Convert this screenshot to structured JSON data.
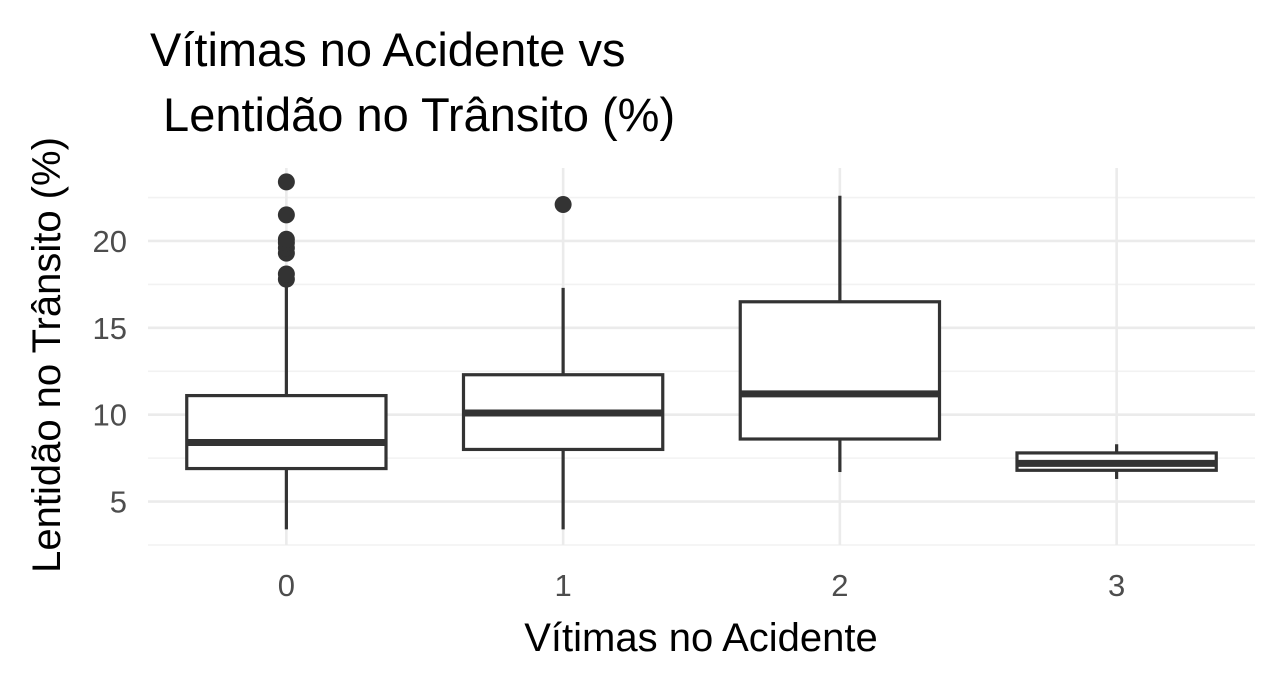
{
  "chart_data": {
    "type": "boxplot",
    "title_lines": [
      "Vítimas no Acidente vs",
      " Lentidão no Trânsito (%)"
    ],
    "xlabel": "Vítimas no Acidente",
    "ylabel": "Lentidão no Trânsito (%)",
    "categories": [
      "0",
      "1",
      "2",
      "3"
    ],
    "y_ticks": [
      5,
      10,
      15,
      20
    ],
    "y_tick_labels": [
      "5",
      "10",
      "15",
      "20"
    ],
    "ylim": [
      2.5,
      24.2
    ],
    "grid": true,
    "theme": "minimal",
    "box_color": "#333333",
    "boxes": [
      {
        "category": "0",
        "lower_whisker": 3.4,
        "q1": 6.9,
        "median": 8.4,
        "q3": 11.1,
        "upper_whisker": 17.6,
        "outliers": [
          17.8,
          18.1,
          19.3,
          19.6,
          19.9,
          20.1,
          21.5,
          23.4
        ]
      },
      {
        "category": "1",
        "lower_whisker": 3.4,
        "q1": 8.0,
        "median": 10.1,
        "q3": 12.3,
        "upper_whisker": 17.3,
        "outliers": [
          22.1
        ]
      },
      {
        "category": "2",
        "lower_whisker": 6.7,
        "q1": 8.6,
        "median": 11.2,
        "q3": 16.5,
        "upper_whisker": 22.6,
        "outliers": []
      },
      {
        "category": "3",
        "lower_whisker": 6.3,
        "q1": 6.8,
        "median": 7.2,
        "q3": 7.8,
        "upper_whisker": 8.3,
        "outliers": []
      }
    ]
  }
}
